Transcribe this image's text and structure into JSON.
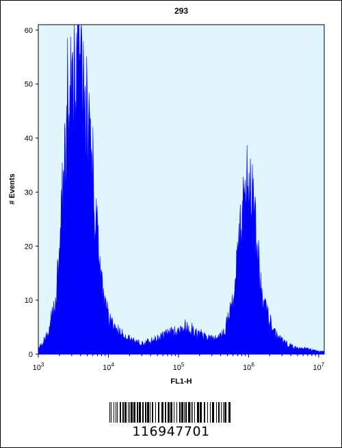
{
  "colors": {
    "plot_background": "#e1f6fc",
    "histogram_fill": "#0000ff",
    "axis": "#000000"
  },
  "chart_data": {
    "type": "area",
    "title": "293",
    "xlabel": "FL1-H",
    "ylabel": "# Events",
    "x_scale": "log",
    "xlim": [
      1000,
      12000000
    ],
    "ylim": [
      0,
      61
    ],
    "x_ticks": [
      {
        "value": 1000,
        "base": "10",
        "exp": "3"
      },
      {
        "value": 10000,
        "base": "10",
        "exp": "4"
      },
      {
        "value": 100000,
        "base": "10",
        "exp": "5"
      },
      {
        "value": 1000000,
        "base": "10",
        "exp": "6"
      },
      {
        "value": 10000000,
        "base": "10",
        "exp": "7"
      }
    ],
    "y_ticks": [
      0,
      10,
      20,
      30,
      40,
      50,
      60
    ],
    "grid": false,
    "legend": "none",
    "series": [
      {
        "x": [
          1000,
          1400,
          1800,
          2200,
          2600,
          3000,
          3400,
          3800,
          4200,
          5000,
          6000,
          7000,
          8000,
          9000,
          10000,
          12000,
          15000,
          20000,
          30000,
          50000,
          70000,
          100000,
          130000,
          180000,
          250000,
          350000,
          450000,
          550000,
          650000,
          750000,
          850000,
          950000,
          1050000,
          1150000,
          1300000,
          1500000,
          1800000,
          2200000,
          2700000,
          3500000,
          5000000,
          7000000,
          10000000,
          12000000
        ],
        "y": [
          1,
          4,
          11,
          28,
          44,
          51,
          54,
          57,
          52,
          43,
          32,
          21,
          13,
          9,
          7,
          5,
          4,
          3,
          2,
          3,
          4,
          4,
          5,
          4,
          3,
          3,
          4,
          8,
          15,
          22,
          28,
          32,
          33,
          30,
          22,
          14,
          8,
          5,
          3,
          2,
          1,
          1,
          0.5,
          0.5
        ]
      }
    ]
  },
  "barcode": {
    "number": "116947701"
  }
}
